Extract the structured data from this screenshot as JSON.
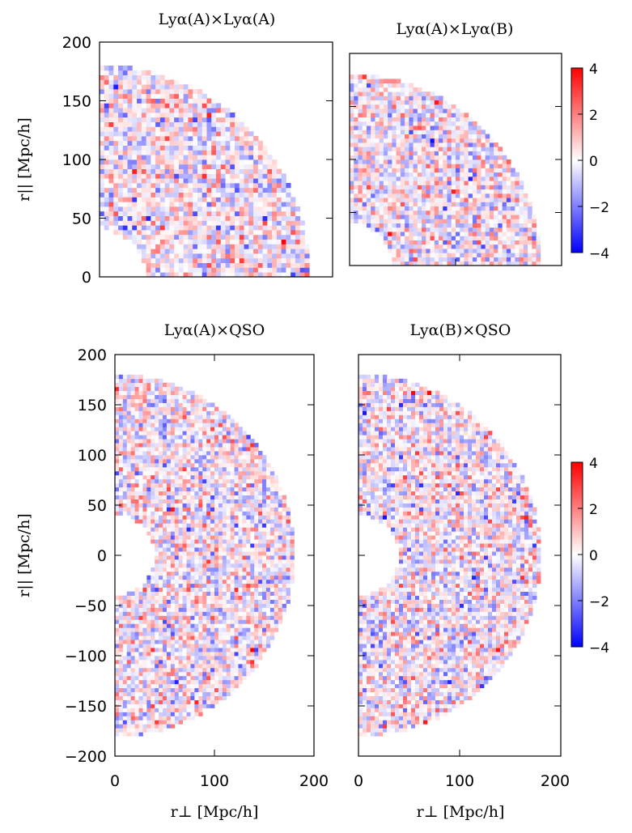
{
  "chart_data": [
    {
      "type": "heatmap",
      "id": "p1",
      "title": "Lyα(A)×Lyα(A)",
      "xlabel": "",
      "ylabel": "r|| [Mpc/h]",
      "xlim": [
        0,
        200
      ],
      "ylim": [
        0,
        200
      ],
      "xticks": [],
      "yticks": [
        "0",
        "50",
        "100",
        "150",
        "200"
      ],
      "r_min": 40,
      "r_max": 180,
      "colorbar": false
    },
    {
      "type": "heatmap",
      "id": "p2",
      "title": "Lyα(A)×Lyα(B)",
      "xlabel": "",
      "ylabel": "",
      "xlim": [
        0,
        200
      ],
      "ylim": [
        0,
        200
      ],
      "xticks": [],
      "yticks": [],
      "r_min": 40,
      "r_max": 180,
      "colorbar": true
    },
    {
      "type": "heatmap",
      "id": "p3",
      "title": "Lyα(A)×QSO",
      "xlabel": "r⊥ [Mpc/h]",
      "ylabel": "r|| [Mpc/h]",
      "xlim": [
        0,
        200
      ],
      "ylim": [
        -200,
        200
      ],
      "xticks": [
        "0",
        "100",
        "200"
      ],
      "yticks": [
        "−200",
        "−150",
        "−100",
        "−50",
        "0",
        "50",
        "100",
        "150",
        "200"
      ],
      "r_min": 40,
      "r_max": 180,
      "colorbar": false
    },
    {
      "type": "heatmap",
      "id": "p4",
      "title": "Lyα(B)×QSO",
      "xlabel": "r⊥ [Mpc/h]",
      "ylabel": "",
      "xlim": [
        0,
        200
      ],
      "ylim": [
        -200,
        200
      ],
      "xticks": [
        "0",
        "100",
        "200"
      ],
      "yticks": [],
      "r_min": 40,
      "r_max": 180,
      "colorbar": true
    }
  ],
  "colorbar": {
    "vmin": -4,
    "vmax": 4,
    "ticks": [
      "4",
      "2",
      "0",
      "−2",
      "−4"
    ],
    "low_color": "#0000ff",
    "mid_color": "#ffffff",
    "high_color": "#ff0000"
  }
}
